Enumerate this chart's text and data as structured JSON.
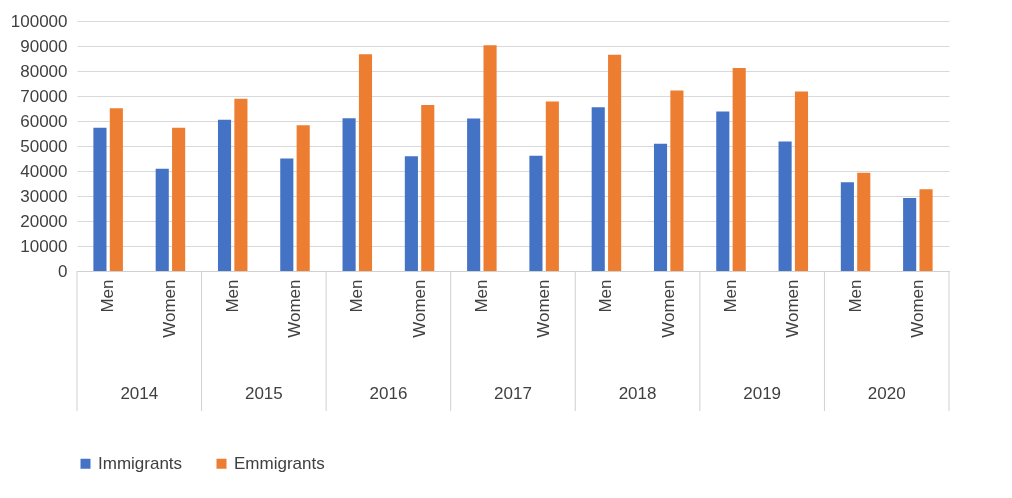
{
  "chart_data": {
    "type": "bar",
    "categories": [
      "Men",
      "Women",
      "Men",
      "Women",
      "Men",
      "Women",
      "Men",
      "Women",
      "Men",
      "Women",
      "Men",
      "Women",
      "Men",
      "Women"
    ],
    "series": [
      {
        "name": "Immigrants",
        "color": "#4472c4",
        "values": [
          57300,
          40900,
          60500,
          45000,
          61100,
          45900,
          61000,
          46100,
          65500,
          50900,
          63800,
          51800,
          35500,
          29200
        ]
      },
      {
        "name": "Emmigrants",
        "color": "#ed7d31",
        "values": [
          65100,
          57300,
          68900,
          58300,
          86700,
          66400,
          90300,
          67800,
          86500,
          72200,
          81200,
          71800,
          39300,
          32700
        ]
      }
    ],
    "annotations": [
      "2014",
      "2015",
      "2016",
      "2017",
      "2018",
      "2019",
      "2020"
    ],
    "ylim": [
      0,
      100000
    ],
    "yticks": [
      0,
      10000,
      20000,
      30000,
      40000,
      50000,
      60000,
      70000,
      80000,
      90000,
      100000
    ],
    "grid": "y",
    "legend": "bottom"
  }
}
